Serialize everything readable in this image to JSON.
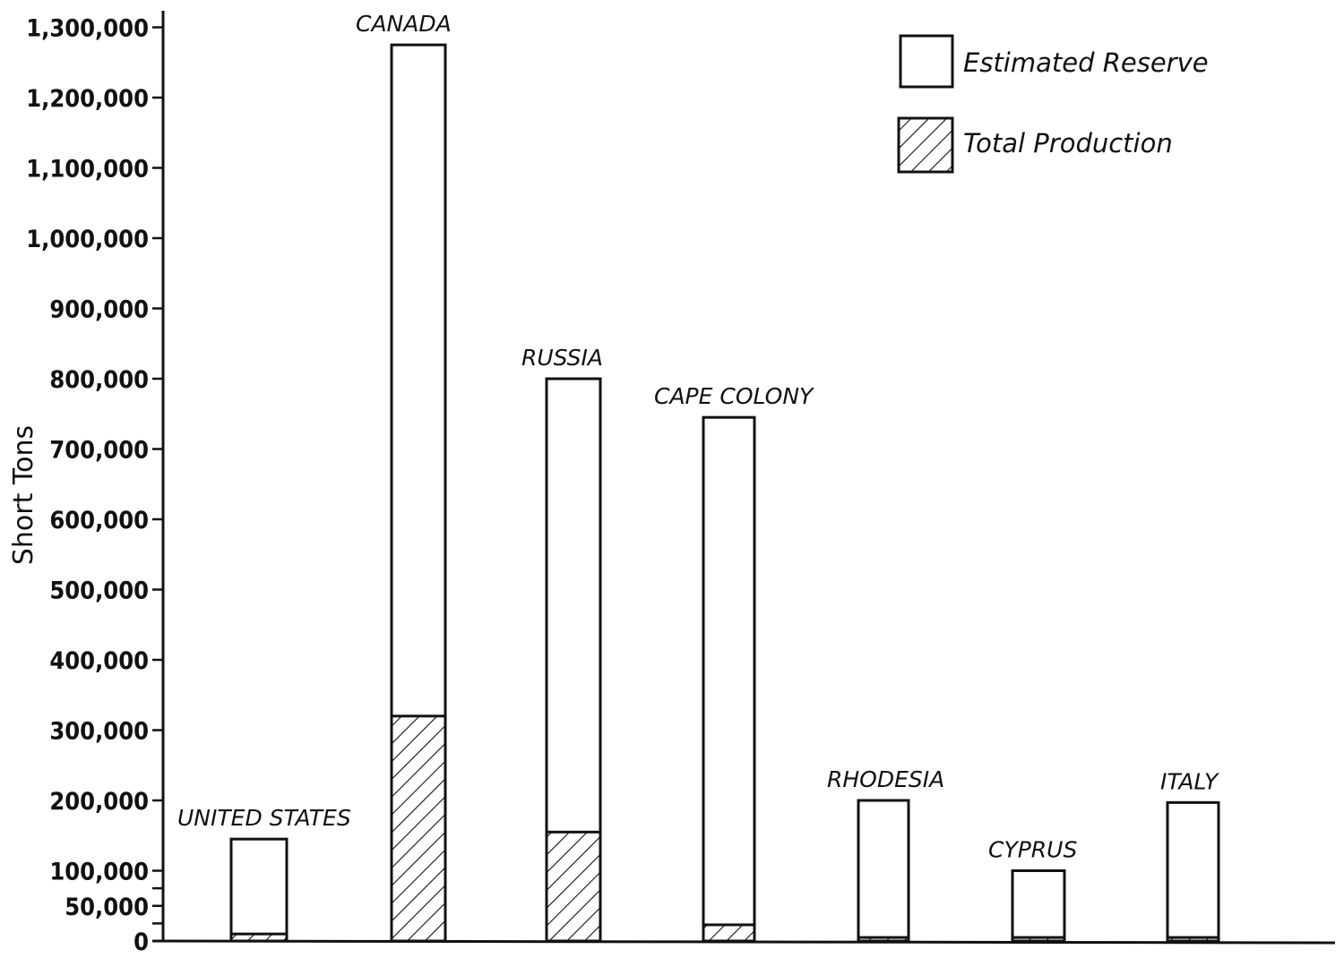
{
  "chart_data": {
    "type": "bar",
    "stacked": true,
    "title": "",
    "xlabel": "",
    "ylabel": "Short Tons",
    "ylim": [
      0,
      1300000
    ],
    "y_ticks": [
      0,
      50000,
      100000,
      200000,
      300000,
      400000,
      500000,
      600000,
      700000,
      800000,
      900000,
      1000000,
      1100000,
      1200000,
      1300000
    ],
    "y_tick_labels": [
      "0",
      "50,000",
      "100,000",
      "200,000",
      "300,000",
      "400,000",
      "500,000",
      "600,000",
      "700,000",
      "800,000",
      "900,000",
      "1,000,000",
      "1,100,000",
      "1,200,000",
      "1,300,000"
    ],
    "y_minor_ticks": [
      25000,
      75000
    ],
    "grid": false,
    "legend_position": "top-right",
    "categories": [
      "UNITED STATES",
      "CANADA",
      "RUSSIA",
      "CAPE COLONY",
      "RHODESIA",
      "CYPRUS",
      "ITALY"
    ],
    "series": [
      {
        "name": "Total Production",
        "pattern": "hatched",
        "values": [
          10000,
          320000,
          155000,
          23000,
          5000,
          5000,
          5000
        ]
      },
      {
        "name": "Estimated Reserve",
        "pattern": "white",
        "bar_top_values": [
          145000,
          1275000,
          800000,
          745000,
          200000,
          100000,
          197000
        ]
      }
    ],
    "colors": {
      "ink": "#111111",
      "background": "#ffffff"
    }
  }
}
